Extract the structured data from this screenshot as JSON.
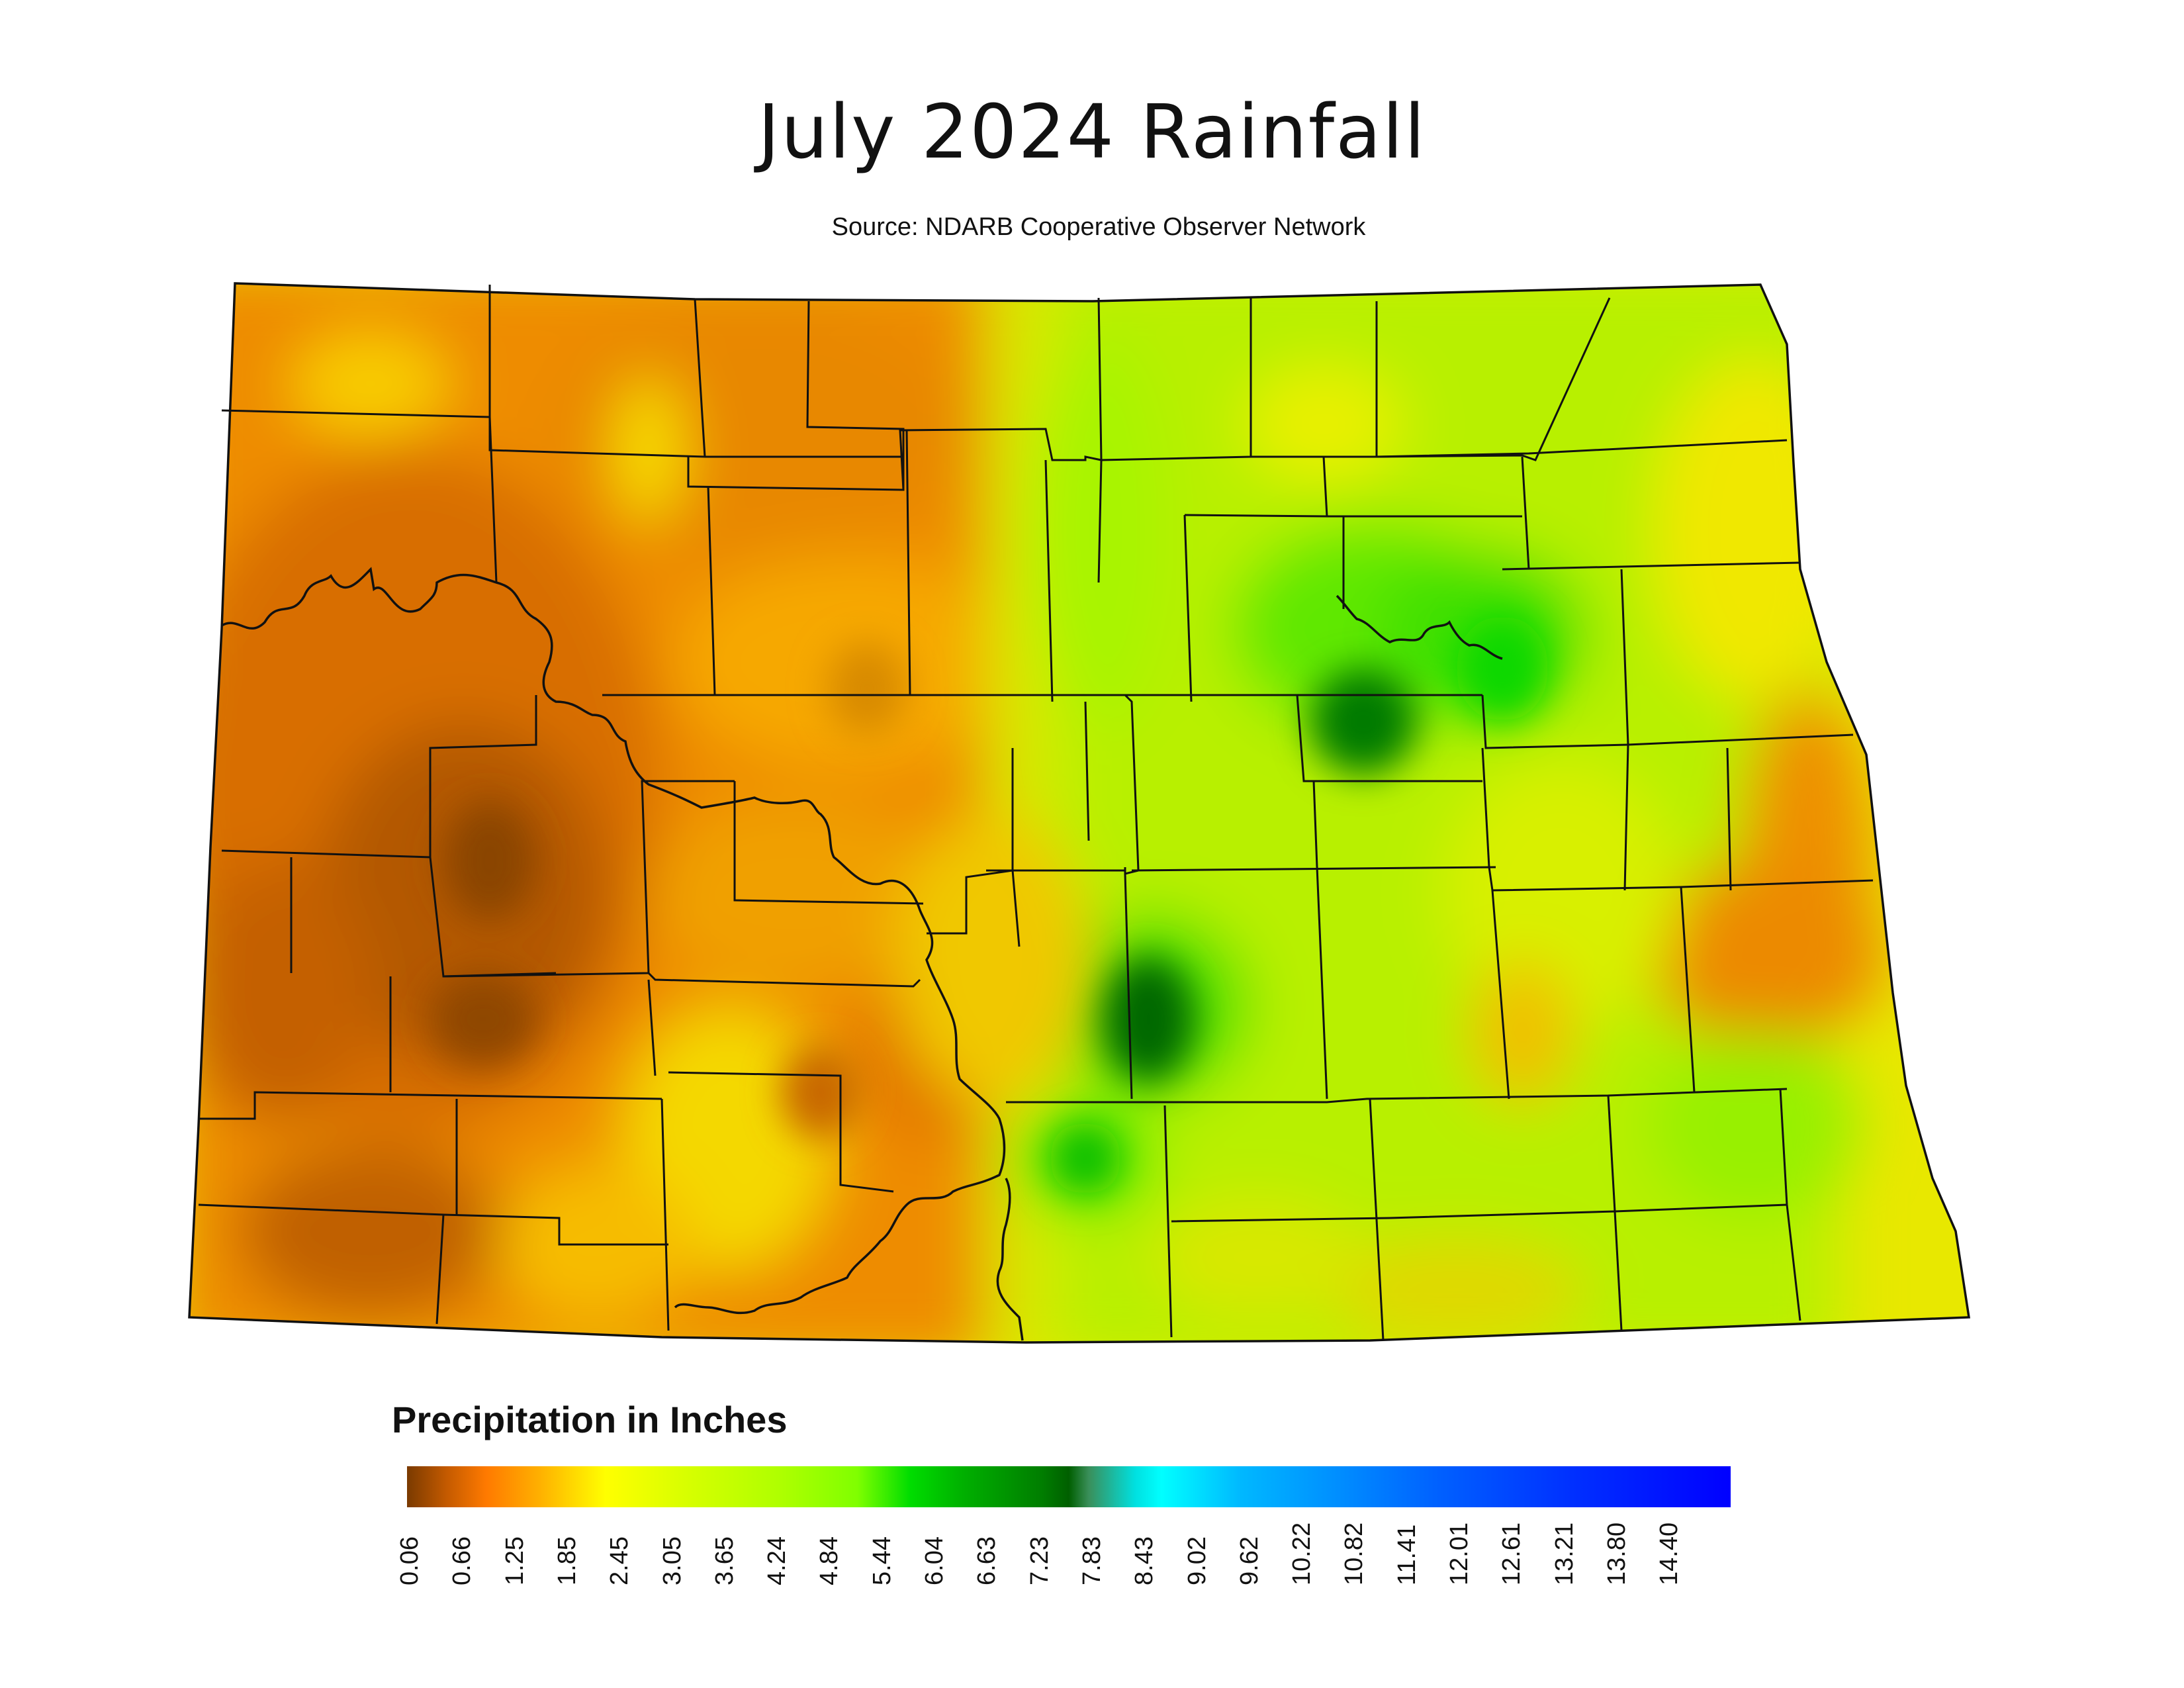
{
  "title": "July 2024 Rainfall",
  "source": "Source: NDARB Cooperative Observer Network",
  "legend": {
    "title": "Precipitation in Inches",
    "ticks": [
      "0.06",
      "0.66",
      "1.25",
      "1.85",
      "2.45",
      "3.05",
      "3.65",
      "4.24",
      "4.84",
      "5.44",
      "6.04",
      "6.63",
      "7.23",
      "7.83",
      "8.43",
      "9.02",
      "9.62",
      "10.22",
      "10.82",
      "11.41",
      "12.01",
      "12.61",
      "13.21",
      "13.80",
      "14.40"
    ],
    "colors": [
      "#7a3a00",
      "#ff7a00",
      "#ffff00",
      "#80ff00",
      "#00dd00",
      "#005f00",
      "#00ffff",
      "#0060ff",
      "#0000ff"
    ]
  },
  "map": {
    "region": "North Dakota",
    "boundary_color": "#111111"
  }
}
